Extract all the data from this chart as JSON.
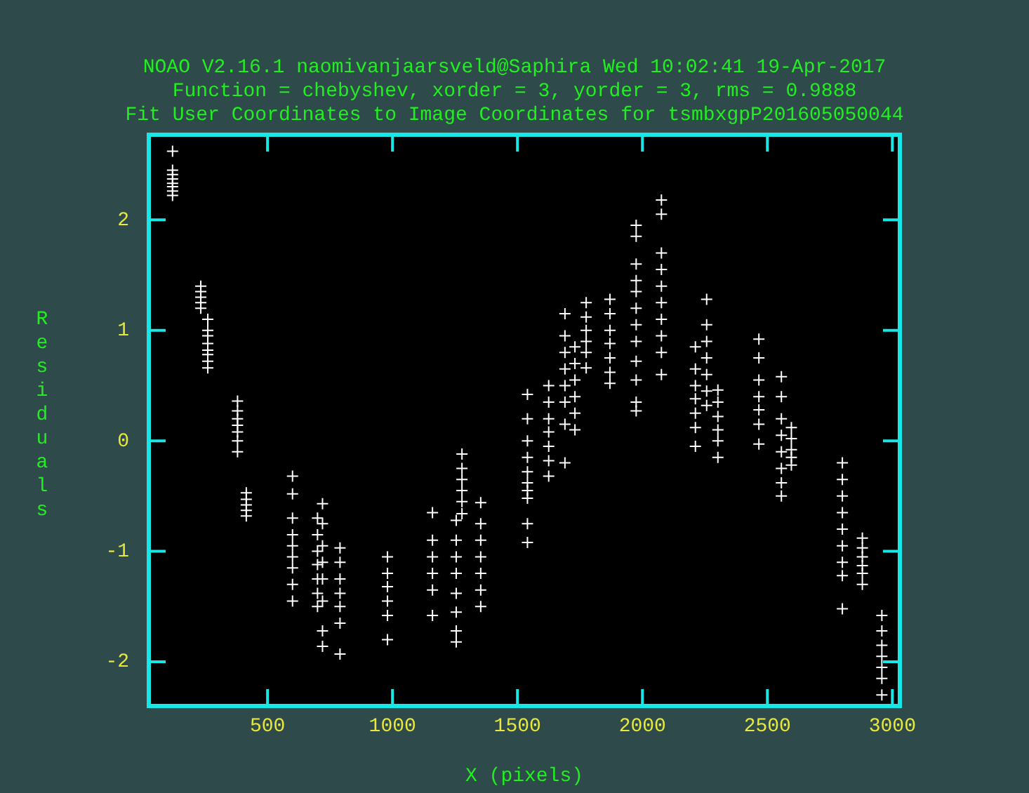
{
  "chart_data": {
    "type": "scatter",
    "title": "NOAO V2.16.1 naomivanjaarsveld@Saphira Wed 10:02:41 19-Apr-2017",
    "subtitle": "Function = chebyshev, xorder = 3, yorder = 3, rms = 0.9888",
    "annotations": [
      "Fit User Coordinates to Image Coordinates for tsmbxgpP201605050044"
    ],
    "xlabel": "X (pixels)",
    "ylabel": "Residuals",
    "x": [
      120,
      120,
      120,
      120,
      120,
      120,
      120,
      120,
      233,
      233,
      233,
      233,
      233,
      261,
      261,
      261,
      261,
      261,
      261,
      261,
      261,
      380,
      380,
      380,
      380,
      380,
      380,
      380,
      415,
      415,
      415,
      415,
      415,
      600,
      600,
      600,
      600,
      600,
      600,
      600,
      600,
      600,
      700,
      700,
      700,
      700,
      700,
      700,
      700,
      720,
      720,
      720,
      720,
      720,
      720,
      720,
      720,
      790,
      790,
      790,
      790,
      790,
      790,
      790,
      980,
      980,
      980,
      980,
      980,
      980,
      1160,
      1160,
      1160,
      1160,
      1160,
      1160,
      1255,
      1255,
      1255,
      1255,
      1255,
      1255,
      1255,
      1255,
      1278,
      1278,
      1278,
      1278,
      1278,
      1278,
      1353,
      1353,
      1353,
      1353,
      1353,
      1353,
      1353,
      1540,
      1540,
      1540,
      1540,
      1540,
      1540,
      1540,
      1540,
      1540,
      1540,
      1625,
      1625,
      1625,
      1625,
      1625,
      1625,
      1625,
      1690,
      1690,
      1690,
      1690,
      1690,
      1690,
      1690,
      1690,
      1730,
      1730,
      1730,
      1730,
      1730,
      1730,
      1775,
      1775,
      1775,
      1775,
      1775,
      1775,
      1870,
      1870,
      1870,
      1870,
      1870,
      1870,
      1870,
      1975,
      1975,
      1975,
      1975,
      1975,
      1975,
      1975,
      1975,
      1975,
      1975,
      1975,
      1975,
      2076,
      2076,
      2076,
      2076,
      2076,
      2076,
      2076,
      2076,
      2076,
      2076,
      2212,
      2212,
      2212,
      2212,
      2212,
      2212,
      2212,
      2257,
      2257,
      2257,
      2257,
      2257,
      2257,
      2257,
      2302,
      2302,
      2302,
      2302,
      2302,
      2302,
      2466,
      2466,
      2466,
      2466,
      2466,
      2466,
      2466,
      2556,
      2556,
      2556,
      2556,
      2556,
      2556,
      2556,
      2556,
      2596,
      2596,
      2596,
      2596,
      2596,
      2800,
      2800,
      2800,
      2800,
      2800,
      2800,
      2800,
      2800,
      2800,
      2880,
      2880,
      2880,
      2880,
      2880,
      2880,
      2958,
      2958,
      2958,
      2958,
      2958,
      2958,
      2958
    ],
    "values": [
      2.62,
      2.45,
      2.41,
      2.37,
      2.33,
      2.3,
      2.26,
      2.22,
      1.4,
      1.35,
      1.3,
      1.25,
      1.2,
      1.1,
      1.0,
      0.95,
      0.88,
      0.82,
      0.78,
      0.72,
      0.66,
      0.36,
      0.27,
      0.2,
      0.14,
      0.08,
      0.0,
      -0.1,
      -0.47,
      -0.53,
      -0.58,
      -0.63,
      -0.68,
      -0.32,
      -0.48,
      -0.7,
      -0.85,
      -0.95,
      -1.05,
      -1.15,
      -1.3,
      -1.45,
      -0.7,
      -0.85,
      -1.0,
      -1.12,
      -1.25,
      -1.38,
      -1.5,
      -0.57,
      -0.75,
      -0.95,
      -1.1,
      -1.25,
      -1.45,
      -1.72,
      -1.86,
      -0.97,
      -1.1,
      -1.25,
      -1.38,
      -1.5,
      -1.65,
      -1.93,
      -1.05,
      -1.2,
      -1.32,
      -1.45,
      -1.58,
      -1.8,
      -0.65,
      -0.9,
      -1.05,
      -1.2,
      -1.35,
      -1.58,
      -0.72,
      -0.9,
      -1.05,
      -1.2,
      -1.38,
      -1.55,
      -1.72,
      -1.82,
      -0.12,
      -0.25,
      -0.35,
      -0.45,
      -0.55,
      -0.66,
      -0.56,
      -0.75,
      -0.9,
      -1.05,
      -1.2,
      -1.35,
      -1.5,
      0.42,
      0.2,
      0.0,
      -0.15,
      -0.28,
      -0.38,
      -0.45,
      -0.52,
      -0.75,
      -0.92,
      0.5,
      0.35,
      0.2,
      0.08,
      -0.05,
      -0.18,
      -0.32,
      1.15,
      0.95,
      0.8,
      0.65,
      0.5,
      0.35,
      0.15,
      -0.2,
      0.85,
      0.7,
      0.55,
      0.4,
      0.25,
      0.1,
      1.25,
      1.12,
      1.0,
      0.9,
      0.8,
      0.66,
      1.28,
      1.15,
      1.0,
      0.88,
      0.75,
      0.62,
      0.52,
      1.95,
      1.85,
      1.6,
      1.45,
      1.35,
      1.2,
      1.05,
      0.9,
      0.72,
      0.55,
      0.35,
      0.27,
      2.18,
      2.05,
      1.7,
      1.55,
      1.4,
      1.25,
      1.1,
      0.95,
      0.8,
      0.6,
      0.85,
      0.65,
      0.5,
      0.38,
      0.25,
      0.12,
      -0.05,
      1.28,
      1.05,
      0.9,
      0.75,
      0.6,
      0.45,
      0.32,
      0.46,
      0.35,
      0.22,
      0.1,
      0.0,
      -0.15,
      0.92,
      0.75,
      0.55,
      0.4,
      0.28,
      0.15,
      -0.03,
      0.58,
      0.4,
      0.2,
      0.05,
      -0.1,
      -0.25,
      -0.38,
      -0.5,
      0.12,
      0.02,
      -0.08,
      -0.15,
      -0.22,
      -0.2,
      -0.35,
      -0.5,
      -0.65,
      -0.8,
      -0.95,
      -1.1,
      -1.22,
      -1.52,
      -0.88,
      -0.97,
      -1.05,
      -1.13,
      -1.2,
      -1.3,
      -1.58,
      -1.72,
      -1.85,
      -1.95,
      -2.05,
      -2.15,
      -2.3
    ],
    "color": "#ffffff",
    "marker": "cross",
    "xlim": [
      25,
      3030
    ],
    "xticks": [
      500,
      1000,
      1500,
      2000,
      2500,
      3000
    ],
    "ylim": [
      -2.4,
      2.77
    ],
    "yticks": [
      -2,
      -1,
      0,
      1,
      2
    ],
    "grid": false,
    "legend": false
  }
}
